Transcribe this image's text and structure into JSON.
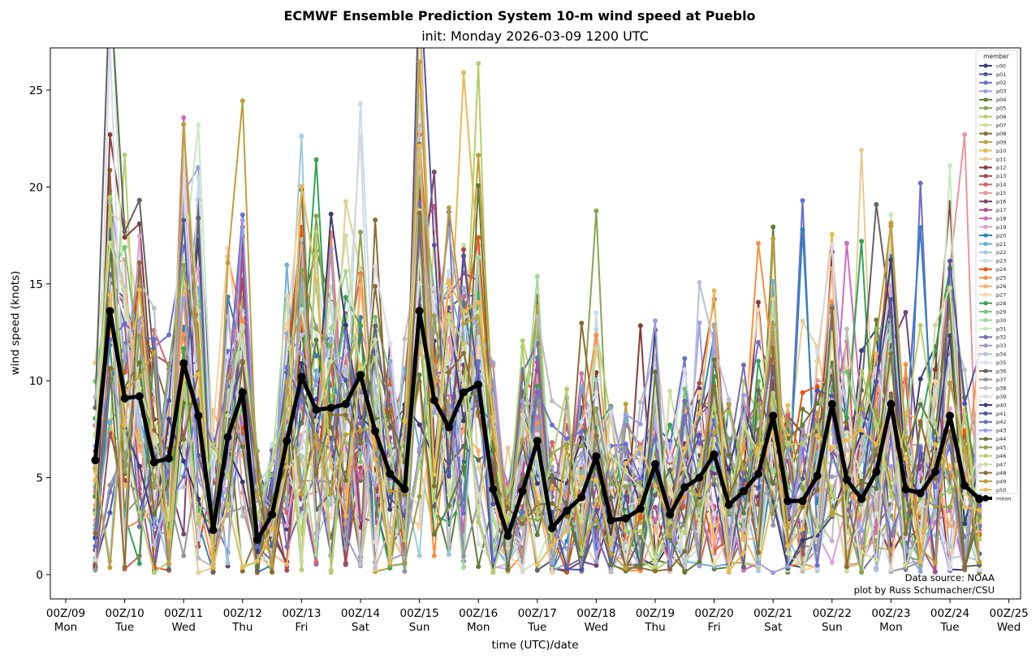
{
  "chart_data": {
    "type": "line",
    "title": "ECMWF Ensemble Prediction System 10-m wind speed at Pueblo",
    "subtitle": "init: Monday 2026-03-09 1200 UTC",
    "xlabel": "time (UTC)/date",
    "ylabel": "wind speed (knots)",
    "ylim": [
      -1.2,
      27.2
    ],
    "yticks": [
      0,
      5,
      10,
      15,
      20,
      25
    ],
    "xlim_days": [
      -0.27,
      16.2
    ],
    "xticks": [
      {
        "day": 0,
        "line1": "00Z/09",
        "line2": "Mon"
      },
      {
        "day": 1,
        "line1": "00Z/10",
        "line2": "Tue"
      },
      {
        "day": 2,
        "line1": "00Z/11",
        "line2": "Wed"
      },
      {
        "day": 3,
        "line1": "00Z/12",
        "line2": "Thu"
      },
      {
        "day": 4,
        "line1": "00Z/13",
        "line2": "Fri"
      },
      {
        "day": 5,
        "line1": "00Z/14",
        "line2": "Sat"
      },
      {
        "day": 6,
        "line1": "00Z/15",
        "line2": "Sun"
      },
      {
        "day": 7,
        "line1": "00Z/16",
        "line2": "Mon"
      },
      {
        "day": 8,
        "line1": "00Z/17",
        "line2": "Tue"
      },
      {
        "day": 9,
        "line1": "00Z/18",
        "line2": "Wed"
      },
      {
        "day": 10,
        "line1": "00Z/19",
        "line2": "Thu"
      },
      {
        "day": 11,
        "line1": "00Z/20",
        "line2": "Fri"
      },
      {
        "day": 12,
        "line1": "00Z/21",
        "line2": "Sat"
      },
      {
        "day": 13,
        "line1": "00Z/22",
        "line2": "Sun"
      },
      {
        "day": 14,
        "line1": "00Z/23",
        "line2": "Mon"
      },
      {
        "day": 15,
        "line1": "00Z/24",
        "line2": "Tue"
      },
      {
        "day": 16,
        "line1": "00Z/25",
        "line2": "Wed"
      }
    ],
    "time_step_hours": 6,
    "first_time_day": 0.5,
    "grid": false,
    "legend": {
      "title": "member",
      "placement": "right",
      "entries": [
        "c00",
        "p01",
        "p02",
        "p03",
        "p04",
        "p05",
        "p06",
        "p07",
        "p08",
        "p09",
        "p10",
        "p11",
        "p12",
        "p13",
        "p14",
        "p15",
        "p16",
        "p17",
        "p18",
        "p19",
        "p20",
        "p21",
        "p22",
        "p23",
        "p24",
        "p25",
        "p26",
        "p27",
        "p28",
        "p29",
        "p30",
        "p31",
        "p32",
        "p33",
        "p34",
        "p35",
        "p36",
        "p37",
        "p38",
        "p39",
        "p40",
        "p41",
        "p42",
        "p43",
        "p44",
        "p45",
        "p46",
        "p47",
        "p48",
        "p49",
        "p50",
        "mean"
      ]
    },
    "member_colors": [
      "#393b79",
      "#5254a3",
      "#6b6ecf",
      "#9c9ede",
      "#637939",
      "#8ca252",
      "#b5cf6b",
      "#cedb9c",
      "#8c6d31",
      "#bd9e39",
      "#e7ba52",
      "#e7cb94",
      "#843c39",
      "#ad494a",
      "#d6616b",
      "#e7969c",
      "#7b4173",
      "#a55194",
      "#ce6dbd",
      "#de9ed6",
      "#3182bd",
      "#6baed6",
      "#9ecae1",
      "#c6dbef",
      "#e6550d",
      "#fd8d3c",
      "#fdae6b",
      "#fdd0a2",
      "#31a354",
      "#74c476",
      "#a1d99b",
      "#c7e9c0",
      "#756bb1",
      "#9e9ac8",
      "#bcbddc",
      "#dadaeb",
      "#636363",
      "#969696",
      "#bdbdbd",
      "#d9d9d9",
      "#393b79",
      "#5254a3",
      "#6b6ecf",
      "#9c9ede",
      "#637939",
      "#8ca252",
      "#b5cf6b",
      "#cedb9c",
      "#8c6d31",
      "#bd9e39",
      "#e7ba52"
    ],
    "mean_color": "#000000",
    "mean_values": [
      5.9,
      13.6,
      9.1,
      9.2,
      5.8,
      6.0,
      10.9,
      8.2,
      2.3,
      7.1,
      9.4,
      1.8,
      3.1,
      6.9,
      10.2,
      8.5,
      8.6,
      8.8,
      10.3,
      7.4,
      5.2,
      4.4,
      13.6,
      9.0,
      7.6,
      9.4,
      9.8,
      4.4,
      2.0,
      4.3,
      6.9,
      2.4,
      3.3,
      4.0,
      6.1,
      2.8,
      2.9,
      3.4,
      5.7,
      3.1,
      4.5,
      5.0,
      6.2,
      3.6,
      4.3,
      5.2,
      8.2,
      3.8,
      3.8,
      5.1,
      8.8,
      4.9,
      3.9,
      5.3,
      8.8,
      4.4,
      4.2,
      5.3,
      8.2,
      4.6,
      3.9
    ],
    "member_spread_note": "ensemble members scatter roughly 0-26 knots around the mean",
    "notable_member_peaks": [
      {
        "member": "p12",
        "step": 1,
        "value": 22.7
      },
      {
        "member": "p12",
        "step": 2,
        "value": 17.4
      },
      {
        "member": "p12",
        "step": 3,
        "value": 18.1
      },
      {
        "member": "p31",
        "step": 7,
        "value": 23.2
      },
      {
        "member": "p35",
        "step": 6,
        "value": 20.4
      },
      {
        "member": "p03",
        "step": 6,
        "value": 19.7
      },
      {
        "member": "p16",
        "step": 7,
        "value": 19.0
      },
      {
        "member": "p36",
        "step": 7,
        "value": 18.4
      },
      {
        "member": "p40",
        "step": 16,
        "value": 18.6
      },
      {
        "member": "p08",
        "step": 19,
        "value": 18.3
      },
      {
        "member": "p38",
        "step": 14,
        "value": 17.3
      },
      {
        "member": "p24",
        "step": 22,
        "value": 22.7
      },
      {
        "member": "p02",
        "step": 24,
        "value": 18.7
      },
      {
        "member": "p10",
        "step": 25,
        "value": 25.9
      },
      {
        "member": "p10",
        "step": 26,
        "value": 16.3
      },
      {
        "member": "p25",
        "step": 45,
        "value": 17.1
      },
      {
        "member": "p20",
        "step": 48,
        "value": 17.8
      },
      {
        "member": "p02",
        "step": 48,
        "value": 19.3
      },
      {
        "member": "p11",
        "step": 52,
        "value": 21.9
      },
      {
        "member": "p36",
        "step": 53,
        "value": 19.1
      },
      {
        "member": "p18",
        "step": 51,
        "value": 17.1
      },
      {
        "member": "p28",
        "step": 52,
        "value": 17.2
      },
      {
        "member": "p02",
        "step": 56,
        "value": 20.2
      },
      {
        "member": "p20",
        "step": 56,
        "value": 17.9
      },
      {
        "member": "p12",
        "step": 58,
        "value": 19.2
      },
      {
        "member": "p31",
        "step": 58,
        "value": 21.1
      },
      {
        "member": "p15",
        "step": 59,
        "value": 22.7
      }
    ]
  },
  "annotations": {
    "data_source": "Data source: NOAA",
    "credit": "plot by Russ Schumacher/CSU"
  }
}
